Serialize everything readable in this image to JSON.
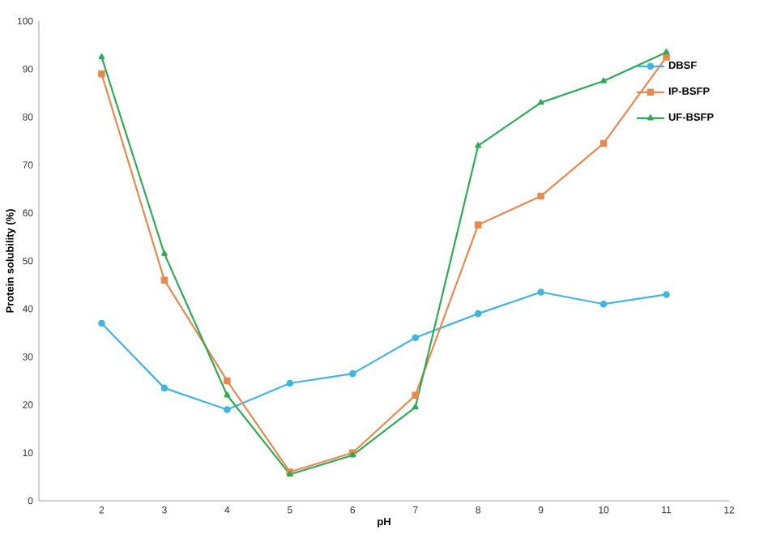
{
  "chart_data": {
    "type": "line",
    "xlabel": "pH",
    "ylabel": "Protein solubility (%)",
    "x": [
      2,
      3,
      4,
      5,
      6,
      7,
      8,
      9,
      10,
      11
    ],
    "xlim": [
      1,
      12
    ],
    "xticks": [
      2,
      3,
      4,
      5,
      6,
      7,
      8,
      9,
      10,
      11,
      12
    ],
    "ylim": [
      0,
      100
    ],
    "yticks": [
      0,
      10,
      20,
      30,
      40,
      50,
      60,
      70,
      80,
      90,
      100
    ],
    "legend": "top right",
    "grid": false,
    "line_style": "solid",
    "series": [
      {
        "name": "DBSF",
        "color": "#41b4e3",
        "marker": "circle",
        "values": [
          37,
          23.5,
          19,
          24.5,
          26.5,
          34,
          39,
          43.5,
          41,
          43
        ]
      },
      {
        "name": "IP-BSFP",
        "color": "#e8894f",
        "marker": "square",
        "values": [
          89,
          46,
          25,
          6,
          10,
          22,
          57.5,
          63.5,
          74.5,
          92.5
        ]
      },
      {
        "name": "UF-BSFP",
        "color": "#2eab55",
        "marker": "triangle",
        "values": [
          92.5,
          51.5,
          22,
          5.5,
          9.5,
          19.5,
          74,
          83,
          87.5,
          93.5
        ]
      }
    ]
  }
}
